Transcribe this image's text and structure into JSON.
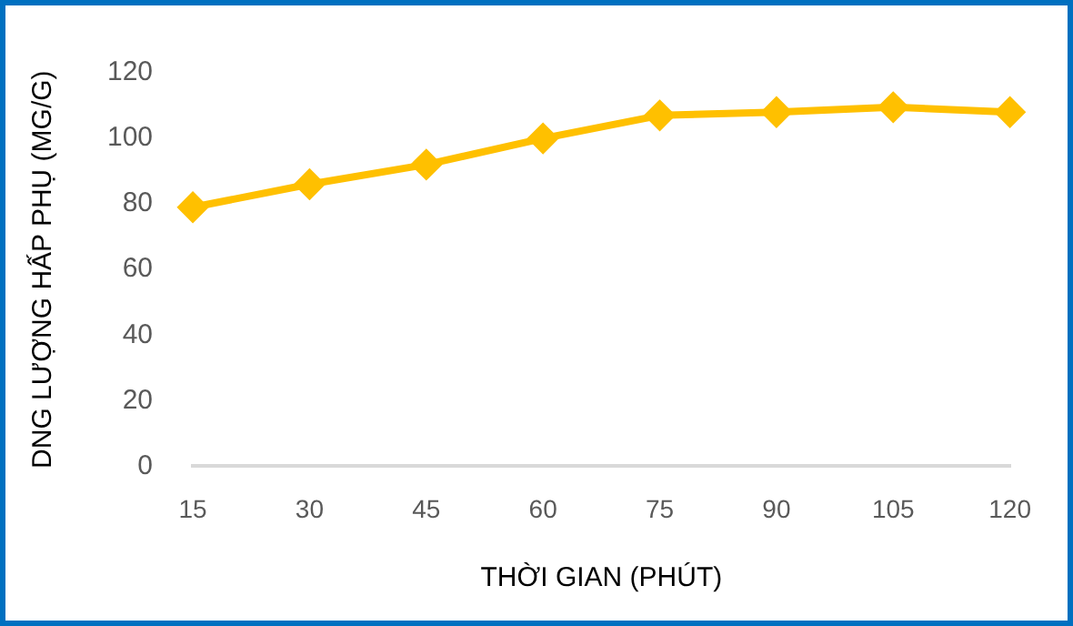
{
  "chart_data": {
    "type": "line",
    "xlabel": "THỜI GIAN (PHÚT)",
    "ylabel": "DNG LƯỢNG HẤP PHỤ (MG/G)",
    "categories": [
      "15",
      "30",
      "45",
      "60",
      "75",
      "90",
      "105",
      "120"
    ],
    "series": [
      {
        "color": "#ffc000",
        "values": [
          79,
          86,
          92,
          100,
          107,
          108,
          109.5,
          108
        ]
      }
    ],
    "ylim": [
      0,
      120
    ],
    "yticks": [
      0,
      20,
      40,
      60,
      80,
      100,
      120
    ],
    "grid": false,
    "legend": false,
    "marker": "diamond",
    "line_style": "solid"
  }
}
